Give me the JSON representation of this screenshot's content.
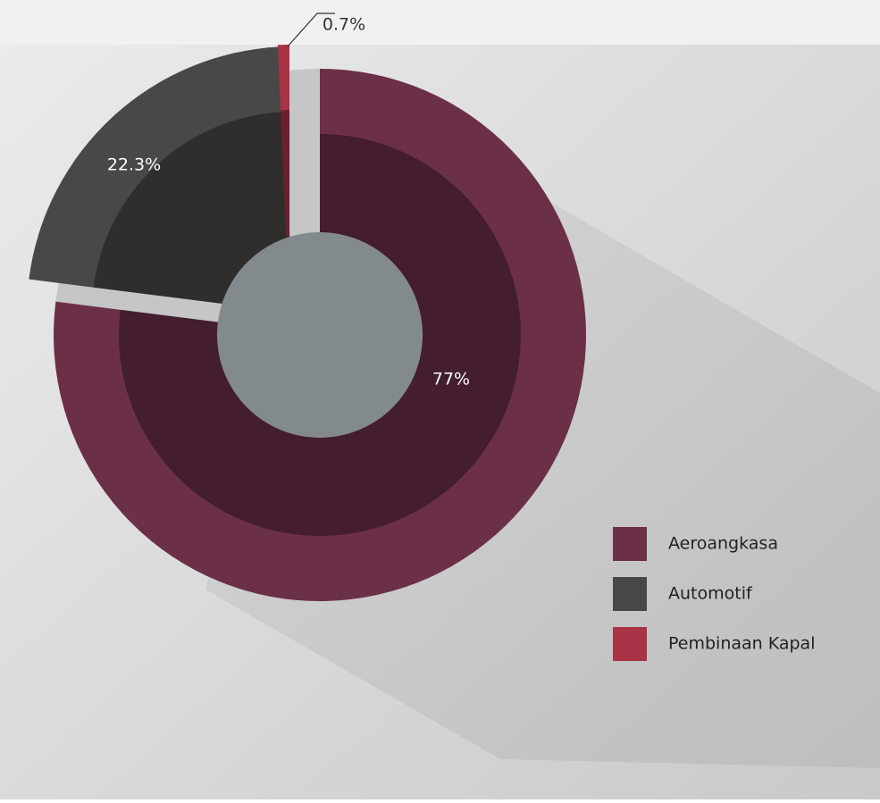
{
  "chart_data": {
    "type": "pie",
    "categories": [
      "Aeroangkasa",
      "Automotif",
      "Pembinaan Kapal"
    ],
    "values": [
      77,
      22.3,
      0.7
    ],
    "value_labels": [
      "77%",
      "22.3%",
      "0.7%"
    ],
    "colors": [
      "#6b3048",
      "#4a4846",
      "#a83246"
    ],
    "legend": "right"
  }
}
